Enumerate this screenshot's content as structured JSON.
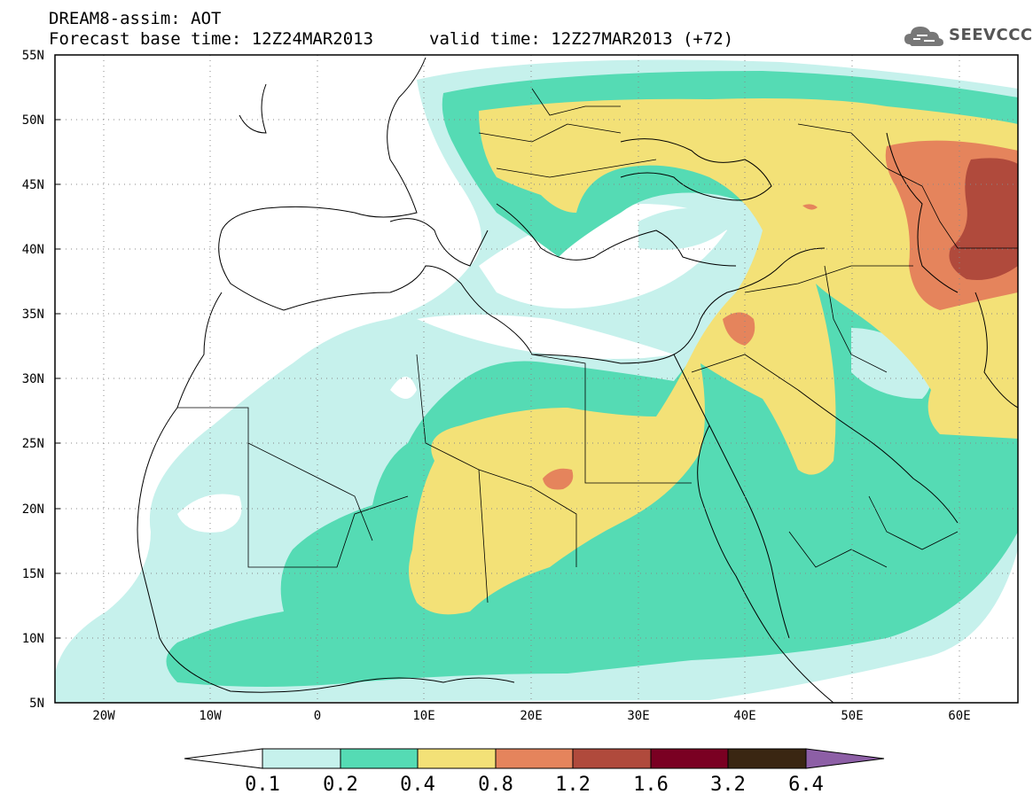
{
  "header": {
    "title": "DREAM8-assim: AOT",
    "base_time": "Forecast base time: 12Z24MAR2013",
    "valid_time": "valid time: 12Z27MAR2013 (+72)"
  },
  "logo": {
    "text": "SEEVCCC",
    "icon": "cloud-icon"
  },
  "map": {
    "lat_labels": [
      "55N",
      "50N",
      "45N",
      "40N",
      "35N",
      "30N",
      "25N",
      "20N",
      "15N",
      "10N",
      "5N"
    ],
    "lon_labels": [
      "20W",
      "10W",
      "0",
      "10E",
      "20E",
      "30E",
      "40E",
      "50E",
      "60E"
    ],
    "gridlines": "dotted"
  },
  "colorbar": {
    "labels": [
      "0.1",
      "0.2",
      "0.4",
      "0.8",
      "1.2",
      "1.6",
      "3.2",
      "6.4"
    ],
    "colors": [
      "#ffffff",
      "#c6f1ec",
      "#55dbb4",
      "#f3e177",
      "#e5845c",
      "#b04a3c",
      "#7a0022",
      "#3a2612",
      "#8d5fa6"
    ]
  }
}
